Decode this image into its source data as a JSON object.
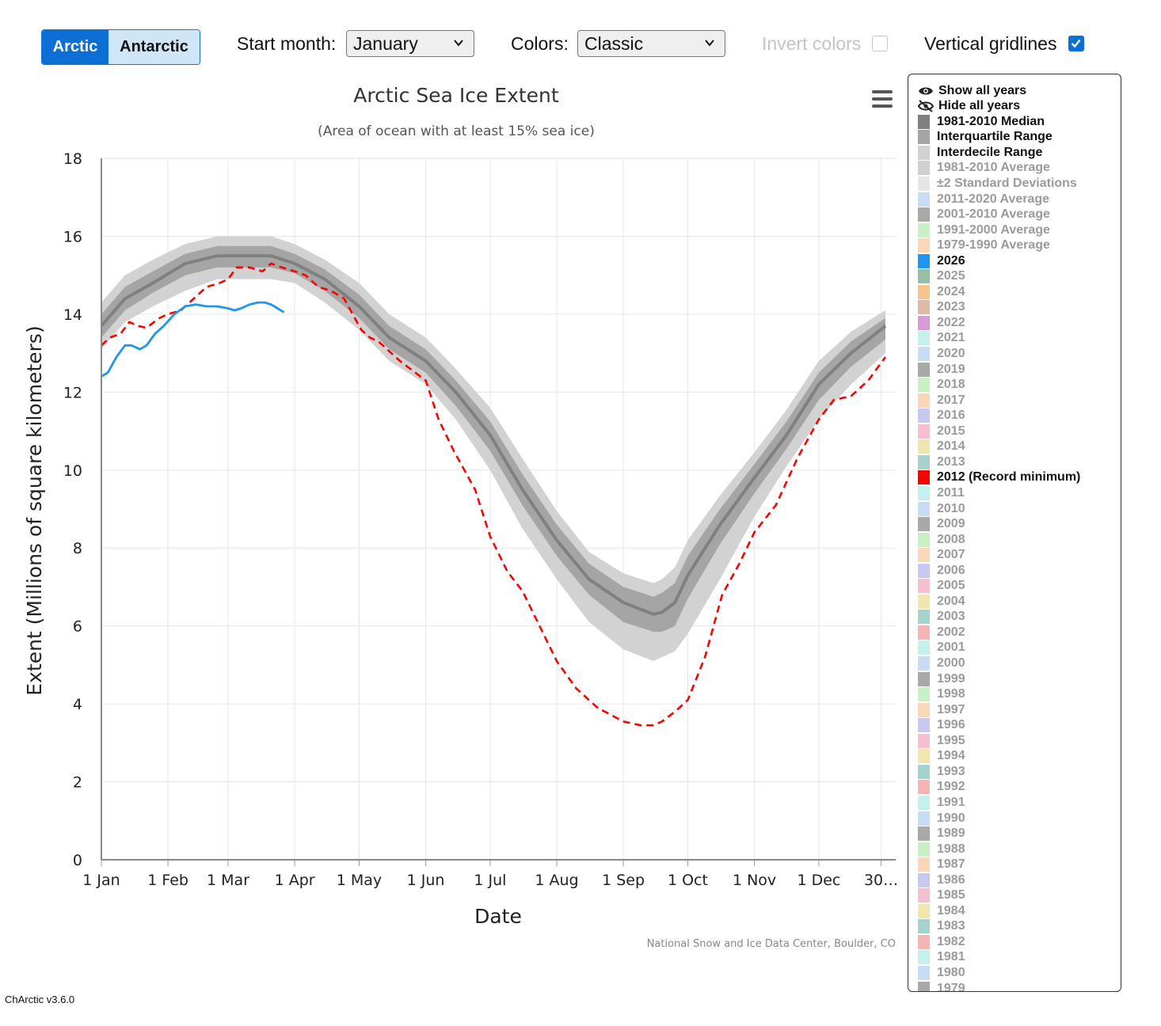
{
  "toolbar": {
    "hemisphere": {
      "active": "Arctic",
      "inactive": "Antarctic"
    },
    "start_month_label": "Start month:",
    "start_month_value": "January",
    "colors_label": "Colors:",
    "colors_value": "Classic",
    "invert_label": "Invert colors",
    "invert_checked": false,
    "gridlines_label": "Vertical gridlines",
    "gridlines_checked": true
  },
  "credit": "National Snow and Ice Data Center, Boulder, CO",
  "version": "ChArctic v3.6.0",
  "legend": {
    "show_all": "Show all years",
    "hide_all": "Hide all years",
    "items": [
      {
        "label": "1981-2010 Median",
        "color": "#808080",
        "on": true
      },
      {
        "label": "Interquartile Range",
        "color": "#a5a5a5",
        "on": true
      },
      {
        "label": "Interdecile Range",
        "color": "#d2d2d2",
        "on": true
      },
      {
        "label": "1981-2010 Average",
        "color": "#d0d0d0",
        "on": false
      },
      {
        "label": "±2 Standard Deviations",
        "color": "#e6e6e6",
        "on": false
      },
      {
        "label": "2011-2020 Average",
        "color": "#c8dcf3",
        "on": false
      },
      {
        "label": "2001-2010 Average",
        "color": "#a9a9a9",
        "on": false
      },
      {
        "label": "1991-2000 Average",
        "color": "#c9f0c4",
        "on": false
      },
      {
        "label": "1979-1990 Average",
        "color": "#f8d8b6",
        "on": false
      },
      {
        "label": "2026",
        "color": "#1e96f0",
        "on": true
      },
      {
        "label": "2025",
        "color": "#97bfa4",
        "on": false
      },
      {
        "label": "2024",
        "color": "#f7c48f",
        "on": false
      },
      {
        "label": "2023",
        "color": "#dcbaa6",
        "on": false
      },
      {
        "label": "2022",
        "color": "#d99ad6",
        "on": false
      },
      {
        "label": "2021",
        "color": "#c6f0ec",
        "on": false
      },
      {
        "label": "2020",
        "color": "#c8dcf3",
        "on": false
      },
      {
        "label": "2019",
        "color": "#a9a9a9",
        "on": false
      },
      {
        "label": "2018",
        "color": "#c9f0c4",
        "on": false
      },
      {
        "label": "2017",
        "color": "#f8d8b6",
        "on": false
      },
      {
        "label": "2016",
        "color": "#c8c8f0",
        "on": false
      },
      {
        "label": "2015",
        "color": "#f6bfcf",
        "on": false
      },
      {
        "label": "2014",
        "color": "#f1e6b0",
        "on": false
      },
      {
        "label": "2013",
        "color": "#a5d2cc",
        "on": false
      },
      {
        "label": "2012 (Record minimum)",
        "color": "#ff0000",
        "on": true
      },
      {
        "label": "2011",
        "color": "#c6f0ec",
        "on": false
      },
      {
        "label": "2010",
        "color": "#c8dcf3",
        "on": false
      },
      {
        "label": "2009",
        "color": "#a9a9a9",
        "on": false
      },
      {
        "label": "2008",
        "color": "#c9f0c4",
        "on": false
      },
      {
        "label": "2007",
        "color": "#f8d8b6",
        "on": false
      },
      {
        "label": "2006",
        "color": "#c8c8f0",
        "on": false
      },
      {
        "label": "2005",
        "color": "#f6bfcf",
        "on": false
      },
      {
        "label": "2004",
        "color": "#f1e6b0",
        "on": false
      },
      {
        "label": "2003",
        "color": "#a5d2cc",
        "on": false
      },
      {
        "label": "2002",
        "color": "#f5b5b5",
        "on": false
      },
      {
        "label": "2001",
        "color": "#c6f0ec",
        "on": false
      },
      {
        "label": "2000",
        "color": "#c8dcf3",
        "on": false
      },
      {
        "label": "1999",
        "color": "#a9a9a9",
        "on": false
      },
      {
        "label": "1998",
        "color": "#c9f0c4",
        "on": false
      },
      {
        "label": "1997",
        "color": "#f8d8b6",
        "on": false
      },
      {
        "label": "1996",
        "color": "#c8c8f0",
        "on": false
      },
      {
        "label": "1995",
        "color": "#f6bfcf",
        "on": false
      },
      {
        "label": "1994",
        "color": "#f1e6b0",
        "on": false
      },
      {
        "label": "1993",
        "color": "#a5d2cc",
        "on": false
      },
      {
        "label": "1992",
        "color": "#f5b5b5",
        "on": false
      },
      {
        "label": "1991",
        "color": "#c6f0ec",
        "on": false
      },
      {
        "label": "1990",
        "color": "#c8dcf3",
        "on": false
      },
      {
        "label": "1989",
        "color": "#a9a9a9",
        "on": false
      },
      {
        "label": "1988",
        "color": "#c9f0c4",
        "on": false
      },
      {
        "label": "1987",
        "color": "#f8d8b6",
        "on": false
      },
      {
        "label": "1986",
        "color": "#c8c8f0",
        "on": false
      },
      {
        "label": "1985",
        "color": "#f6bfcf",
        "on": false
      },
      {
        "label": "1984",
        "color": "#f1e6b0",
        "on": false
      },
      {
        "label": "1983",
        "color": "#a5d2cc",
        "on": false
      },
      {
        "label": "1982",
        "color": "#f5b5b5",
        "on": false
      },
      {
        "label": "1981",
        "color": "#c6f0ec",
        "on": false
      },
      {
        "label": "1980",
        "color": "#c8dcf3",
        "on": false
      },
      {
        "label": "1979",
        "color": "#a9a9a9",
        "on": false
      }
    ]
  },
  "chart_data": {
    "type": "line",
    "title": "Arctic Sea Ice Extent",
    "subtitle": "(Area of ocean with at least 15% sea ice)",
    "xlabel": "Date",
    "ylabel": "Extent (Millions of square kilometers)",
    "ylim": [
      0,
      18
    ],
    "yticks": [
      0,
      2,
      4,
      6,
      8,
      10,
      12,
      14,
      16,
      18
    ],
    "xlim": [
      1,
      366
    ],
    "xticks": [
      {
        "label": "1 Jan",
        "day": 1
      },
      {
        "label": "1 Feb",
        "day": 32
      },
      {
        "label": "1 Mar",
        "day": 60
      },
      {
        "label": "1 Apr",
        "day": 91
      },
      {
        "label": "1 May",
        "day": 121
      },
      {
        "label": "1 Jun",
        "day": 152
      },
      {
        "label": "1 Jul",
        "day": 182
      },
      {
        "label": "1 Aug",
        "day": 213
      },
      {
        "label": "1 Sep",
        "day": 244
      },
      {
        "label": "1 Oct",
        "day": 274
      },
      {
        "label": "1 Nov",
        "day": 305
      },
      {
        "label": "1 Dec",
        "day": 335
      },
      {
        "label": "30…",
        "day": 364
      }
    ],
    "vertical_gridlines": true,
    "series": [
      {
        "name": "1981-2010 Median",
        "color": "#808080",
        "x": [
          1,
          12,
          25,
          40,
          55,
          65,
          80,
          91,
          105,
          121,
          135,
          152,
          166,
          182,
          197,
          213,
          228,
          244,
          258,
          262,
          268,
          274,
          289,
          305,
          320,
          335,
          350,
          366
        ],
        "y": [
          13.7,
          14.4,
          14.8,
          15.3,
          15.5,
          15.5,
          15.5,
          15.3,
          14.9,
          14.2,
          13.4,
          12.8,
          12.0,
          10.9,
          9.5,
          8.2,
          7.2,
          6.6,
          6.3,
          6.35,
          6.6,
          7.3,
          8.6,
          9.8,
          10.9,
          12.2,
          13.0,
          13.7
        ]
      },
      {
        "name": "Interquartile Range",
        "color": "#a5a5a5",
        "x": [
          1,
          12,
          25,
          40,
          55,
          65,
          80,
          91,
          105,
          121,
          135,
          152,
          166,
          182,
          197,
          213,
          228,
          244,
          258,
          262,
          268,
          274,
          289,
          305,
          320,
          335,
          350,
          366
        ],
        "upper": [
          14.0,
          14.7,
          15.1,
          15.55,
          15.75,
          15.75,
          15.75,
          15.55,
          15.15,
          14.5,
          13.7,
          13.1,
          12.3,
          11.25,
          9.9,
          8.6,
          7.6,
          7.0,
          6.75,
          6.85,
          7.1,
          7.8,
          9.0,
          10.15,
          11.25,
          12.5,
          13.3,
          13.9
        ],
        "lower": [
          13.4,
          14.1,
          14.55,
          15.0,
          15.2,
          15.2,
          15.2,
          15.05,
          14.6,
          13.9,
          13.1,
          12.5,
          11.65,
          10.5,
          9.1,
          7.8,
          6.8,
          6.1,
          5.85,
          5.85,
          6.0,
          6.7,
          8.1,
          9.4,
          10.55,
          11.8,
          12.65,
          13.35
        ]
      },
      {
        "name": "Interdecile Range",
        "color": "#d2d2d2",
        "x": [
          1,
          12,
          25,
          40,
          55,
          65,
          80,
          91,
          105,
          121,
          135,
          152,
          166,
          182,
          197,
          213,
          228,
          244,
          258,
          262,
          268,
          274,
          289,
          305,
          320,
          335,
          350,
          366
        ],
        "upper": [
          14.3,
          15.0,
          15.4,
          15.8,
          16.0,
          16.0,
          16.0,
          15.8,
          15.4,
          14.8,
          14.0,
          13.4,
          12.6,
          11.6,
          10.3,
          8.95,
          7.9,
          7.35,
          7.1,
          7.2,
          7.5,
          8.2,
          9.35,
          10.45,
          11.55,
          12.8,
          13.55,
          14.1
        ],
        "lower": [
          13.1,
          13.8,
          14.2,
          14.6,
          14.9,
          14.9,
          14.9,
          14.8,
          14.3,
          13.6,
          12.8,
          12.2,
          11.3,
          10.0,
          8.5,
          7.2,
          6.1,
          5.4,
          5.1,
          5.2,
          5.35,
          5.8,
          7.2,
          8.8,
          10.1,
          11.3,
          12.2,
          13.0
        ]
      },
      {
        "name": "2026",
        "color": "#1e96f0",
        "x": [
          1,
          4,
          8,
          12,
          15,
          19,
          22,
          26,
          30,
          35,
          40,
          45,
          50,
          55,
          60,
          63,
          66,
          70,
          74,
          77,
          80,
          83,
          86
        ],
        "y": [
          12.4,
          12.5,
          12.9,
          13.2,
          13.2,
          13.1,
          13.2,
          13.5,
          13.7,
          14.0,
          14.2,
          14.25,
          14.2,
          14.2,
          14.15,
          14.1,
          14.15,
          14.25,
          14.3,
          14.3,
          14.25,
          14.15,
          14.05
        ]
      },
      {
        "name": "2012 (Record minimum)",
        "color": "#ff0000",
        "dash": true,
        "x": [
          1,
          5,
          10,
          14,
          18,
          22,
          28,
          32,
          38,
          44,
          50,
          56,
          60,
          64,
          70,
          76,
          80,
          85,
          91,
          96,
          102,
          108,
          114,
          118,
          122,
          126,
          130,
          140,
          152,
          158,
          165,
          175,
          182,
          190,
          197,
          205,
          213,
          222,
          232,
          244,
          252,
          258,
          262,
          268,
          274,
          282,
          290,
          298,
          305,
          315,
          325,
          335,
          342,
          350,
          358,
          366
        ],
        "y": [
          13.2,
          13.4,
          13.5,
          13.8,
          13.7,
          13.65,
          13.9,
          14.0,
          14.1,
          14.4,
          14.7,
          14.8,
          14.9,
          15.2,
          15.2,
          15.1,
          15.3,
          15.2,
          15.1,
          15.0,
          14.7,
          14.6,
          14.4,
          14.0,
          13.6,
          13.4,
          13.3,
          12.8,
          12.3,
          11.3,
          10.5,
          9.5,
          8.3,
          7.4,
          6.9,
          6.0,
          5.1,
          4.4,
          3.9,
          3.55,
          3.45,
          3.45,
          3.55,
          3.8,
          4.1,
          5.2,
          6.8,
          7.6,
          8.4,
          9.1,
          10.3,
          11.3,
          11.8,
          11.9,
          12.3,
          12.9
        ]
      }
    ]
  }
}
